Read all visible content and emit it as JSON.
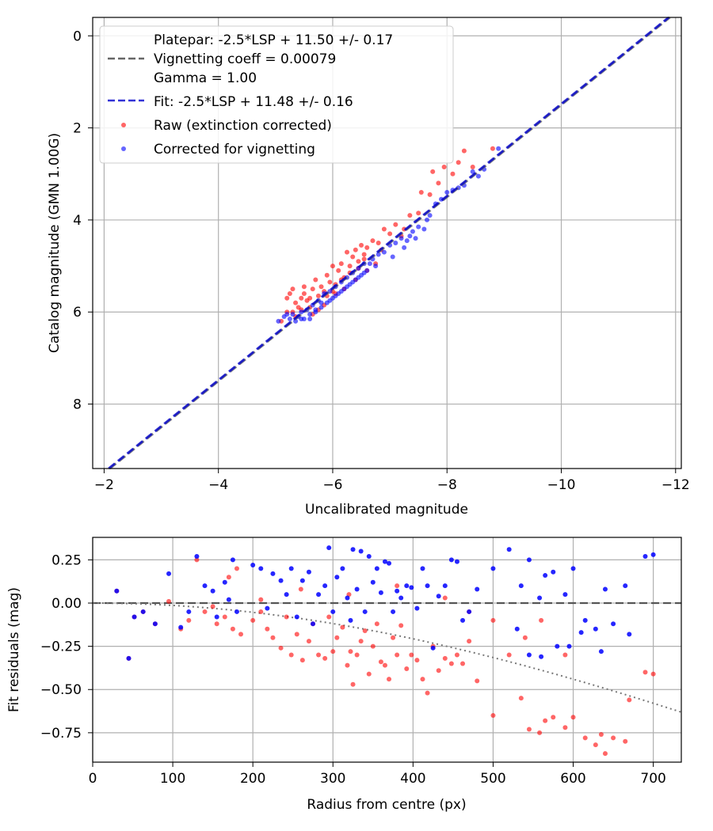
{
  "colors": {
    "raw": "#ff0000",
    "corrected": "#0000ff",
    "fit": "#0000cc",
    "platepar": "#666666",
    "grid": "#b0b0b0",
    "vignette_curve": "#777777"
  },
  "chart_data": [
    {
      "type": "scatter",
      "xlabel": "Uncalibrated magnitude",
      "ylabel": "Catalog magnitude (GMN 1.00G)",
      "xlim": [
        -1.8,
        -12.1
      ],
      "ylim": [
        9.4,
        -0.4
      ],
      "xticks": [
        -2,
        -4,
        -6,
        -8,
        -10,
        -12
      ],
      "xtick_labels": [
        "−2",
        "−4",
        "−6",
        "−8",
        "−10",
        "−12"
      ],
      "yticks": [
        0,
        2,
        4,
        6,
        8
      ],
      "ytick_labels": [
        "0",
        "2",
        "4",
        "6",
        "8"
      ],
      "grid": true,
      "legend_position": "top-left",
      "legend": {
        "platepar_lines": [
          "Platepar: -2.5*LSP + 11.50 +/- 0.17",
          "Vignetting coeff = 0.00079",
          "Gamma = 1.00"
        ],
        "fit": "Fit: -2.5*LSP + 11.48 +/- 0.16",
        "raw": "Raw (extinction corrected)",
        "corrected": "Corrected for vignetting"
      },
      "fit_line": {
        "intercept": 11.48,
        "slope": 1.0
      },
      "platepar_line": {
        "intercept": 11.5,
        "slope": 1.0
      },
      "raw_points": [
        [
          -5.1,
          6.2
        ],
        [
          -5.2,
          6.0
        ],
        [
          -5.25,
          5.6
        ],
        [
          -5.3,
          5.5
        ],
        [
          -5.35,
          5.8
        ],
        [
          -5.4,
          5.9
        ],
        [
          -5.45,
          5.7
        ],
        [
          -5.5,
          5.6
        ],
        [
          -5.55,
          5.75
        ],
        [
          -5.6,
          5.9
        ],
        [
          -5.65,
          5.5
        ],
        [
          -5.7,
          5.3
        ],
        [
          -5.75,
          5.65
        ],
        [
          -5.8,
          5.45
        ],
        [
          -5.85,
          5.55
        ],
        [
          -5.9,
          5.2
        ],
        [
          -5.95,
          5.35
        ],
        [
          -6.0,
          5.0
        ],
        [
          -6.05,
          5.4
        ],
        [
          -6.1,
          5.1
        ],
        [
          -6.15,
          4.95
        ],
        [
          -6.2,
          5.25
        ],
        [
          -6.25,
          4.7
        ],
        [
          -6.3,
          5.0
        ],
        [
          -6.35,
          4.8
        ],
        [
          -6.4,
          4.65
        ],
        [
          -6.45,
          4.9
        ],
        [
          -6.5,
          4.55
        ],
        [
          -6.55,
          4.75
        ],
        [
          -6.6,
          4.6
        ],
        [
          -6.7,
          4.45
        ],
        [
          -6.8,
          4.5
        ],
        [
          -6.9,
          4.2
        ],
        [
          -7.0,
          4.3
        ],
        [
          -7.1,
          4.1
        ],
        [
          -7.2,
          4.35
        ],
        [
          -7.35,
          3.9
        ],
        [
          -7.5,
          3.85
        ],
        [
          -7.55,
          3.4
        ],
        [
          -7.7,
          3.45
        ],
        [
          -7.75,
          2.95
        ],
        [
          -7.85,
          3.2
        ],
        [
          -7.95,
          2.85
        ],
        [
          -8.1,
          3.0
        ],
        [
          -8.2,
          2.75
        ],
        [
          -8.3,
          2.5
        ],
        [
          -8.45,
          2.85
        ],
        [
          -8.8,
          2.45
        ],
        [
          -5.3,
          6.0
        ],
        [
          -5.45,
          5.95
        ],
        [
          -5.6,
          5.7
        ],
        [
          -5.85,
          5.85
        ],
        [
          -6.05,
          5.6
        ],
        [
          -6.2,
          5.5
        ],
        [
          -6.4,
          5.3
        ],
        [
          -6.6,
          5.1
        ],
        [
          -6.75,
          4.95
        ],
        [
          -5.2,
          5.7
        ],
        [
          -5.65,
          6.05
        ],
        [
          -5.9,
          5.65
        ],
        [
          -6.15,
          5.3
        ],
        [
          -6.3,
          5.15
        ],
        [
          -5.5,
          5.45
        ],
        [
          -6.55,
          4.85
        ],
        [
          -6.85,
          4.65
        ],
        [
          -7.25,
          4.2
        ],
        [
          -5.35,
          6.1
        ],
        [
          -6.0,
          5.55
        ],
        [
          -5.75,
          5.95
        ],
        [
          -6.45,
          5.05
        ]
      ],
      "corrected_points": [
        [
          -5.05,
          6.2
        ],
        [
          -5.15,
          6.1
        ],
        [
          -5.25,
          6.15
        ],
        [
          -5.3,
          6.05
        ],
        [
          -5.35,
          6.2
        ],
        [
          -5.4,
          6.1
        ],
        [
          -5.45,
          6.0
        ],
        [
          -5.5,
          6.15
        ],
        [
          -5.55,
          5.95
        ],
        [
          -5.6,
          6.05
        ],
        [
          -5.65,
          5.85
        ],
        [
          -5.7,
          6.0
        ],
        [
          -5.75,
          5.75
        ],
        [
          -5.8,
          5.9
        ],
        [
          -5.85,
          5.6
        ],
        [
          -5.9,
          5.8
        ],
        [
          -5.95,
          5.55
        ],
        [
          -6.0,
          5.7
        ],
        [
          -6.05,
          5.45
        ],
        [
          -6.1,
          5.6
        ],
        [
          -6.15,
          5.35
        ],
        [
          -6.2,
          5.5
        ],
        [
          -6.25,
          5.25
        ],
        [
          -6.3,
          5.4
        ],
        [
          -6.35,
          5.15
        ],
        [
          -6.4,
          5.3
        ],
        [
          -6.45,
          5.05
        ],
        [
          -6.5,
          5.2
        ],
        [
          -6.55,
          4.95
        ],
        [
          -6.6,
          5.1
        ],
        [
          -6.7,
          4.85
        ],
        [
          -6.8,
          4.75
        ],
        [
          -6.9,
          4.7
        ],
        [
          -7.0,
          4.55
        ],
        [
          -7.1,
          4.5
        ],
        [
          -7.2,
          4.4
        ],
        [
          -7.3,
          4.45
        ],
        [
          -7.4,
          4.25
        ],
        [
          -7.5,
          4.15
        ],
        [
          -7.6,
          4.2
        ],
        [
          -7.7,
          3.9
        ],
        [
          -7.8,
          3.65
        ],
        [
          -7.9,
          3.55
        ],
        [
          -8.0,
          3.4
        ],
        [
          -8.1,
          3.35
        ],
        [
          -8.3,
          3.25
        ],
        [
          -8.45,
          2.95
        ],
        [
          -8.55,
          3.05
        ],
        [
          -8.65,
          2.9
        ],
        [
          -8.9,
          2.45
        ],
        [
          -5.2,
          6.05
        ],
        [
          -5.45,
          6.15
        ],
        [
          -5.7,
          5.95
        ],
        [
          -5.95,
          5.75
        ],
        [
          -6.15,
          5.55
        ],
        [
          -6.35,
          5.35
        ],
        [
          -6.55,
          5.15
        ],
        [
          -6.75,
          5.0
        ],
        [
          -7.05,
          4.8
        ],
        [
          -7.25,
          4.6
        ],
        [
          -7.45,
          4.4
        ],
        [
          -5.6,
          6.15
        ],
        [
          -5.8,
          5.8
        ],
        [
          -6.05,
          5.65
        ],
        [
          -6.25,
          5.45
        ],
        [
          -6.45,
          5.25
        ],
        [
          -6.65,
          4.95
        ],
        [
          -7.35,
          4.35
        ],
        [
          -7.65,
          4.0
        ],
        [
          -8.2,
          3.3
        ]
      ]
    },
    {
      "type": "scatter",
      "xlabel": "Radius from centre (px)",
      "ylabel": "Fit residuals (mag)",
      "xlim": [
        0,
        735
      ],
      "ylim": [
        -0.92,
        0.38
      ],
      "xticks": [
        0,
        100,
        200,
        300,
        400,
        500,
        600,
        700
      ],
      "xtick_labels": [
        "0",
        "100",
        "200",
        "300",
        "400",
        "500",
        "600",
        "700"
      ],
      "yticks": [
        0.25,
        0.0,
        -0.25,
        -0.5,
        -0.75
      ],
      "ytick_labels": [
        "0.25",
        "0.00",
        "−0.25",
        "−0.50",
        "−0.75"
      ],
      "grid": true,
      "zero_line": 0.0,
      "vignetting_coeff": 0.00079,
      "raw_points": [
        [
          30,
          0.07
        ],
        [
          45,
          -0.32
        ],
        [
          52,
          -0.08
        ],
        [
          63,
          -0.05
        ],
        [
          78,
          -0.12
        ],
        [
          95,
          0.01
        ],
        [
          110,
          -0.15
        ],
        [
          120,
          -0.1
        ],
        [
          130,
          0.25
        ],
        [
          140,
          -0.05
        ],
        [
          150,
          -0.02
        ],
        [
          155,
          -0.12
        ],
        [
          165,
          -0.08
        ],
        [
          170,
          0.15
        ],
        [
          175,
          -0.15
        ],
        [
          180,
          0.2
        ],
        [
          185,
          -0.18
        ],
        [
          200,
          -0.1
        ],
        [
          210,
          -0.05
        ],
        [
          218,
          -0.15
        ],
        [
          225,
          -0.2
        ],
        [
          235,
          -0.26
        ],
        [
          242,
          -0.08
        ],
        [
          248,
          -0.3
        ],
        [
          255,
          -0.18
        ],
        [
          262,
          -0.33
        ],
        [
          270,
          -0.22
        ],
        [
          275,
          -0.12
        ],
        [
          282,
          -0.3
        ],
        [
          290,
          -0.32
        ],
        [
          295,
          -0.08
        ],
        [
          300,
          -0.28
        ],
        [
          305,
          -0.2
        ],
        [
          312,
          -0.14
        ],
        [
          318,
          -0.36
        ],
        [
          322,
          -0.28
        ],
        [
          325,
          -0.47
        ],
        [
          330,
          -0.3
        ],
        [
          335,
          -0.22
        ],
        [
          340,
          -0.16
        ],
        [
          345,
          -0.41
        ],
        [
          350,
          -0.25
        ],
        [
          355,
          -0.12
        ],
        [
          360,
          -0.34
        ],
        [
          365,
          -0.36
        ],
        [
          370,
          -0.44
        ],
        [
          375,
          -0.2
        ],
        [
          380,
          -0.3
        ],
        [
          385,
          -0.13
        ],
        [
          392,
          -0.38
        ],
        [
          398,
          -0.3
        ],
        [
          405,
          -0.33
        ],
        [
          412,
          -0.44
        ],
        [
          418,
          -0.52
        ],
        [
          425,
          -0.25
        ],
        [
          432,
          -0.39
        ],
        [
          440,
          -0.32
        ],
        [
          448,
          -0.35
        ],
        [
          455,
          -0.3
        ],
        [
          462,
          -0.35
        ],
        [
          470,
          -0.22
        ],
        [
          480,
          -0.45
        ],
        [
          500,
          -0.65
        ],
        [
          520,
          -0.3
        ],
        [
          535,
          -0.55
        ],
        [
          545,
          -0.73
        ],
        [
          558,
          -0.75
        ],
        [
          565,
          -0.68
        ],
        [
          575,
          -0.66
        ],
        [
          590,
          -0.72
        ],
        [
          600,
          -0.66
        ],
        [
          615,
          -0.78
        ],
        [
          628,
          -0.82
        ],
        [
          635,
          -0.76
        ],
        [
          640,
          -0.87
        ],
        [
          650,
          -0.78
        ],
        [
          665,
          -0.8
        ],
        [
          670,
          -0.56
        ],
        [
          690,
          -0.4
        ],
        [
          700,
          -0.41
        ],
        [
          210,
          0.02
        ],
        [
          260,
          0.08
        ],
        [
          320,
          0.05
        ],
        [
          380,
          0.1
        ],
        [
          440,
          0.03
        ],
        [
          470,
          -0.05
        ],
        [
          500,
          -0.1
        ],
        [
          540,
          -0.2
        ],
        [
          560,
          -0.1
        ],
        [
          590,
          -0.3
        ]
      ],
      "corrected_points": [
        [
          30,
          0.07
        ],
        [
          45,
          -0.32
        ],
        [
          52,
          -0.08
        ],
        [
          63,
          -0.05
        ],
        [
          78,
          -0.12
        ],
        [
          95,
          0.17
        ],
        [
          110,
          -0.14
        ],
        [
          120,
          -0.05
        ],
        [
          130,
          0.27
        ],
        [
          140,
          0.1
        ],
        [
          150,
          0.07
        ],
        [
          155,
          -0.08
        ],
        [
          165,
          0.12
        ],
        [
          170,
          0.02
        ],
        [
          175,
          0.25
        ],
        [
          180,
          -0.05
        ],
        [
          200,
          0.22
        ],
        [
          210,
          0.2
        ],
        [
          218,
          -0.03
        ],
        [
          225,
          0.17
        ],
        [
          235,
          0.13
        ],
        [
          242,
          0.05
        ],
        [
          248,
          0.2
        ],
        [
          255,
          -0.08
        ],
        [
          262,
          0.13
        ],
        [
          270,
          0.18
        ],
        [
          275,
          -0.12
        ],
        [
          282,
          0.05
        ],
        [
          290,
          0.1
        ],
        [
          295,
          0.32
        ],
        [
          300,
          -0.05
        ],
        [
          305,
          0.15
        ],
        [
          312,
          0.2
        ],
        [
          318,
          0.03
        ],
        [
          322,
          -0.1
        ],
        [
          325,
          0.31
        ],
        [
          330,
          0.08
        ],
        [
          335,
          0.3
        ],
        [
          340,
          -0.05
        ],
        [
          345,
          0.27
        ],
        [
          350,
          0.12
        ],
        [
          355,
          0.2
        ],
        [
          360,
          0.06
        ],
        [
          365,
          0.24
        ],
        [
          370,
          0.23
        ],
        [
          375,
          -0.05
        ],
        [
          380,
          0.07
        ],
        [
          385,
          0.03
        ],
        [
          392,
          0.1
        ],
        [
          398,
          0.09
        ],
        [
          405,
          -0.03
        ],
        [
          412,
          0.2
        ],
        [
          418,
          0.1
        ],
        [
          425,
          -0.26
        ],
        [
          432,
          0.04
        ],
        [
          440,
          0.1
        ],
        [
          448,
          0.25
        ],
        [
          455,
          0.24
        ],
        [
          462,
          -0.1
        ],
        [
          470,
          -0.05
        ],
        [
          480,
          0.08
        ],
        [
          500,
          0.2
        ],
        [
          520,
          0.31
        ],
        [
          535,
          0.1
        ],
        [
          545,
          0.25
        ],
        [
          558,
          0.03
        ],
        [
          565,
          0.16
        ],
        [
          575,
          0.18
        ],
        [
          590,
          0.05
        ],
        [
          600,
          0.2
        ],
        [
          615,
          -0.1
        ],
        [
          628,
          -0.15
        ],
        [
          635,
          -0.28
        ],
        [
          640,
          0.08
        ],
        [
          650,
          -0.12
        ],
        [
          665,
          0.1
        ],
        [
          670,
          -0.18
        ],
        [
          690,
          0.27
        ],
        [
          700,
          0.28
        ],
        [
          530,
          -0.15
        ],
        [
          545,
          -0.3
        ],
        [
          560,
          -0.31
        ],
        [
          580,
          -0.25
        ],
        [
          595,
          -0.25
        ],
        [
          610,
          -0.17
        ]
      ]
    }
  ]
}
